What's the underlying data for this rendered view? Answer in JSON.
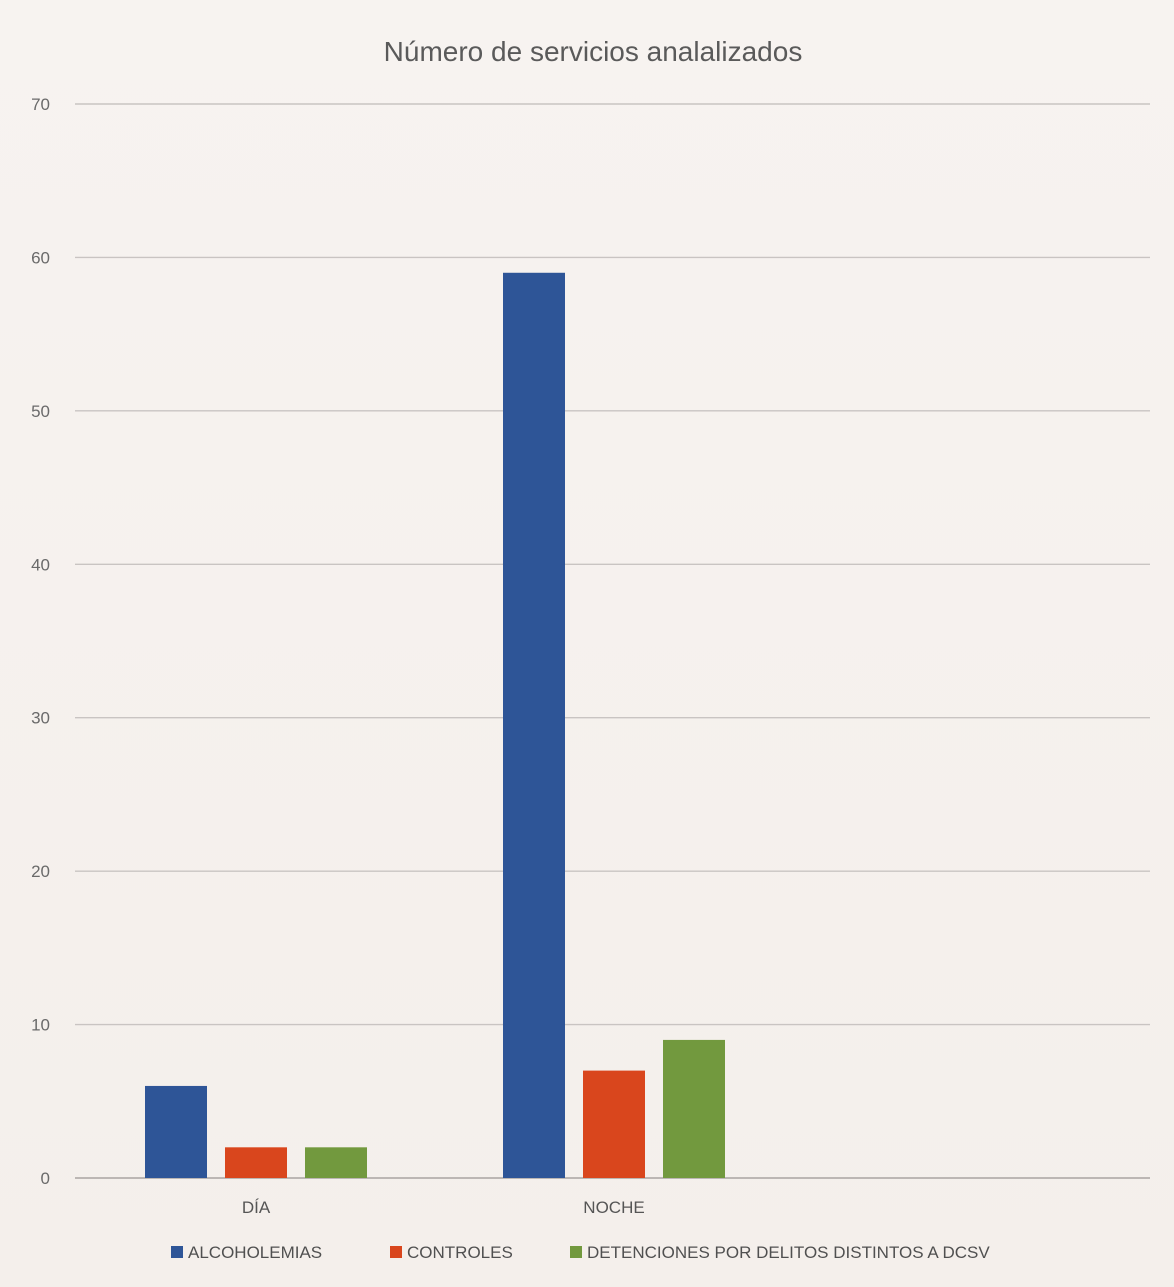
{
  "chart_data": {
    "type": "bar",
    "title": "Número de servicios analalizados",
    "xlabel": "",
    "ylabel": "",
    "categories": [
      "DÍA",
      "NOCHE"
    ],
    "series": [
      {
        "name": "ALCOHOLEMIAS",
        "values": [
          6,
          59
        ],
        "color": "#2e5597"
      },
      {
        "name": "CONTROLES",
        "values": [
          2,
          7
        ],
        "color": "#d9461d"
      },
      {
        "name": "DETENCIONES POR DELITOS DISTINTOS A DCSV",
        "values": [
          2,
          9
        ],
        "color": "#72993e"
      }
    ],
    "ylim": [
      0,
      70
    ],
    "yticks": [
      0,
      10,
      20,
      30,
      40,
      50,
      60,
      70
    ],
    "grid": true,
    "legend_position": "bottom"
  }
}
